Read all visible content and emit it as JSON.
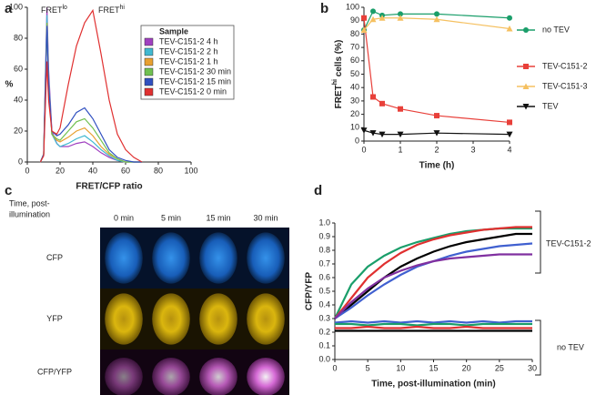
{
  "chart_data": [
    {
      "type": "line",
      "label": "a",
      "xlabel": "FRET/CFP ratio",
      "ylabel": "%",
      "annotations": [
        {
          "text": "FRET",
          "sup": "lo"
        },
        {
          "text": "FRET",
          "sup": "hi"
        }
      ],
      "legend_title": "Sample",
      "x": [
        8,
        10,
        12,
        13,
        15,
        18,
        20,
        25,
        30,
        35,
        40,
        45,
        50,
        55,
        60,
        65,
        70
      ],
      "series": [
        {
          "name": "TEV-C151-2 4 h",
          "color": "#a040c0",
          "values": [
            0,
            5,
            100,
            60,
            20,
            12,
            10,
            10,
            12,
            13,
            10,
            6,
            3,
            1,
            0,
            0,
            0
          ]
        },
        {
          "name": "TEV-C151-2 2 h",
          "color": "#40b8d0",
          "values": [
            0,
            5,
            95,
            55,
            18,
            12,
            10,
            12,
            15,
            17,
            13,
            8,
            4,
            1,
            0,
            0,
            0
          ]
        },
        {
          "name": "TEV-C151-2 1 h",
          "color": "#e8a030",
          "values": [
            0,
            5,
            90,
            50,
            18,
            14,
            13,
            16,
            20,
            22,
            17,
            10,
            5,
            2,
            0,
            0,
            0
          ]
        },
        {
          "name": "TEV-C151-2 30 min",
          "color": "#70c050",
          "values": [
            0,
            5,
            90,
            50,
            18,
            15,
            14,
            20,
            26,
            28,
            22,
            14,
            6,
            2,
            0,
            0,
            0
          ]
        },
        {
          "name": "TEV-C151-2 15 min",
          "color": "#3050c0",
          "values": [
            0,
            5,
            88,
            50,
            20,
            17,
            18,
            24,
            32,
            35,
            28,
            18,
            8,
            3,
            1,
            0,
            0
          ]
        },
        {
          "name": "TEV-C151-2 0 min",
          "color": "#e03030",
          "values": [
            0,
            4,
            65,
            40,
            20,
            18,
            22,
            50,
            75,
            90,
            98,
            70,
            40,
            18,
            8,
            3,
            0
          ]
        }
      ],
      "xlim": [
        0,
        100
      ],
      "xticks": [
        0,
        20,
        40,
        60,
        80,
        100
      ],
      "ylim": [
        0,
        100
      ],
      "yticks": [
        0,
        20,
        40,
        60,
        80,
        100
      ]
    },
    {
      "type": "line",
      "label": "b",
      "xlabel": "Time (h)",
      "ylabel": {
        "text": "FRET",
        "sup": "hi",
        "rest": " cells (%)"
      },
      "x": [
        0,
        0.25,
        0.5,
        1,
        2,
        4
      ],
      "series": [
        {
          "name": "no TEV",
          "color": "#1a9e6a",
          "marker": "circle",
          "values": [
            83,
            97,
            94,
            95,
            95,
            92
          ]
        },
        {
          "name": "TEV-C151-2",
          "color": "#e8403a",
          "marker": "square",
          "values": [
            92,
            33,
            28,
            24,
            19,
            14
          ]
        },
        {
          "name": "TEV-C151-3",
          "color": "#f5c060",
          "marker": "triangle-up",
          "values": [
            83,
            91,
            92,
            92,
            91,
            84
          ]
        },
        {
          "name": "TEV",
          "color": "#111111",
          "marker": "triangle-down",
          "values": [
            8,
            6,
            5,
            5,
            6,
            5
          ]
        }
      ],
      "xlim": [
        0,
        4
      ],
      "xticks": [
        0,
        1,
        2,
        3,
        4
      ],
      "ylim": [
        0,
        100
      ],
      "yticks": [
        0,
        10,
        20,
        30,
        40,
        50,
        60,
        70,
        80,
        90,
        100
      ]
    },
    {
      "type": "line",
      "label": "d",
      "xlabel": "Time, post-illumination (min)",
      "ylabel": "CFP/YFP",
      "groups": [
        "TEV-C151-2",
        "no TEV"
      ],
      "x": [
        0,
        2.5,
        5,
        7.5,
        10,
        12.5,
        15,
        17.5,
        20,
        22.5,
        25,
        27.5,
        30
      ],
      "series": [
        {
          "color": "#1a9e6a",
          "values": [
            0.3,
            0.55,
            0.68,
            0.76,
            0.82,
            0.86,
            0.89,
            0.92,
            0.94,
            0.95,
            0.96,
            0.96,
            0.96
          ]
        },
        {
          "color": "#e03030",
          "values": [
            0.3,
            0.45,
            0.6,
            0.7,
            0.78,
            0.84,
            0.88,
            0.91,
            0.93,
            0.95,
            0.96,
            0.97,
            0.97
          ]
        },
        {
          "color": "#000000",
          "values": [
            0.3,
            0.4,
            0.5,
            0.6,
            0.68,
            0.74,
            0.79,
            0.83,
            0.86,
            0.88,
            0.9,
            0.92,
            0.92
          ]
        },
        {
          "color": "#4060d0",
          "values": [
            0.3,
            0.38,
            0.47,
            0.55,
            0.62,
            0.68,
            0.72,
            0.76,
            0.79,
            0.81,
            0.83,
            0.84,
            0.85
          ]
        },
        {
          "color": "#8030a0",
          "values": [
            0.3,
            0.42,
            0.52,
            0.6,
            0.65,
            0.69,
            0.72,
            0.74,
            0.75,
            0.76,
            0.77,
            0.77,
            0.77
          ]
        },
        {
          "color": "#4060d0",
          "values": [
            0.27,
            0.28,
            0.27,
            0.28,
            0.27,
            0.28,
            0.27,
            0.28,
            0.27,
            0.28,
            0.27,
            0.28,
            0.28
          ]
        },
        {
          "color": "#1a9e6a",
          "values": [
            0.26,
            0.26,
            0.25,
            0.26,
            0.26,
            0.25,
            0.26,
            0.26,
            0.25,
            0.26,
            0.26,
            0.26,
            0.26
          ]
        },
        {
          "color": "#e03030",
          "values": [
            0.23,
            0.23,
            0.24,
            0.23,
            0.23,
            0.24,
            0.23,
            0.23,
            0.24,
            0.23,
            0.23,
            0.23,
            0.23
          ]
        },
        {
          "color": "#000000",
          "values": [
            0.21,
            0.21,
            0.21,
            0.21,
            0.21,
            0.21,
            0.21,
            0.21,
            0.21,
            0.21,
            0.21,
            0.21,
            0.21
          ]
        }
      ],
      "xlim": [
        0,
        30
      ],
      "xticks": [
        0,
        5,
        10,
        15,
        20,
        25,
        30
      ],
      "ylim": [
        0,
        1
      ],
      "yticks": [
        {
          "value": 0,
          "label": "0.0"
        },
        0.1,
        0.2,
        0.3,
        0.4,
        0.5,
        0.6,
        0.7,
        0.8,
        0.9,
        {
          "value": 1,
          "label": "1.0"
        }
      ]
    }
  ],
  "panel_c": {
    "label": "c",
    "corner": [
      "Time, post-",
      "illumination"
    ],
    "columns": [
      "0 min",
      "5 min",
      "15 min",
      "30 min"
    ],
    "rows": [
      "CFP",
      "YFP",
      "CFP/YFP"
    ]
  }
}
